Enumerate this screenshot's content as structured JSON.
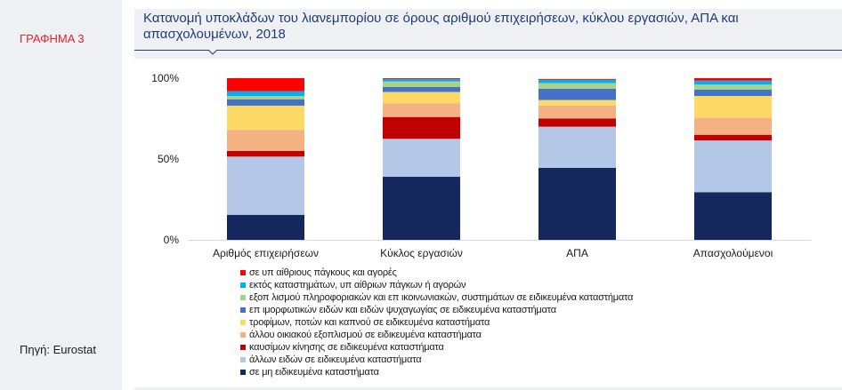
{
  "sidebar": {
    "graph_label": "ΓΡΑΦΗΜΑ 3",
    "source": "Πηγή: Eurostat"
  },
  "chart_data": {
    "type": "bar",
    "stacked": true,
    "normalized": true,
    "title": "Κατανομή υποκλάδων του λιανεμπορίου σε όρους αριθμού επιχειρήσεων, κύκλου εργασιών, ΑΠΑ και απασχολουμένων, 2018",
    "categories": [
      "Αριθμός επιχειρήσεων",
      "Κύκλος εργασιών",
      "ΑΠΑ",
      "Απασχολούμενοι"
    ],
    "y_ticks": [
      "0%",
      "50%",
      "100%"
    ],
    "ylim": [
      0,
      100
    ],
    "legend_position": "bottom",
    "series": [
      {
        "name": "σε μη ειδικευμένα καταστήματα",
        "color": "#14285e",
        "values": [
          15.5,
          39,
          44.5,
          29.5
        ]
      },
      {
        "name": "άλλων ειδών σε ειδικευμένα καταστήματα",
        "color": "#b4c7e7",
        "values": [
          36,
          23.5,
          25.5,
          32
        ]
      },
      {
        "name": "καυσίμων κίνησης σε ειδικευμένα καταστήματα",
        "color": "#c00000",
        "values": [
          3.5,
          13.5,
          5,
          3.5
        ]
      },
      {
        "name": "άλλου οικιακού εξοπλισμού σε ειδικευμένα καταστήματα",
        "color": "#f4b183",
        "values": [
          13,
          8.5,
          8,
          10.5
        ]
      },
      {
        "name": "τροφίμων, ποτών και καπνού σε ειδικευμένα καταστήματα",
        "color": "#ffd966",
        "values": [
          15,
          7,
          3.5,
          13.5
        ]
      },
      {
        "name": "ειδών ψυχαγωγίας σε ειδικευμένα καταστήματα",
        "color": "#4472c4",
        "values": [
          4,
          3,
          7,
          4
        ]
      },
      {
        "name": "εξοπλισμού πληροφοριακών και επικοινωνιακών συστημάτων σε ειδικευμένα καταστήματα",
        "color": "#a9d18e",
        "values": [
          2,
          3.5,
          3.5,
          3
        ]
      },
      {
        "name": "εκτός καταστημάτων, υπαίθριων πάγκων ή αγορών",
        "color": "#00b0f0",
        "values": [
          3,
          1.5,
          2,
          2.5
        ]
      },
      {
        "name": "σε υπαίθριους πάγκους και αγορές",
        "color": "#ff0000",
        "values": [
          8,
          0.5,
          0.5,
          1.5
        ]
      }
    ]
  },
  "legend": [
    {
      "label": "σε υπ αίθριους πάγκους και αγορές",
      "color": "#ff0000"
    },
    {
      "label": "εκτός καταστημάτων, υπ αίθριων πάγκων ή αγορών",
      "color": "#00b0f0"
    },
    {
      "label": "εξοπ λισμού πληροφοριακών και επ ικοινωνιακών, συστημάτων σε ειδικευμένα καταστήματα",
      "color": "#a9d18e"
    },
    {
      "label": " επ ιμορφωτικών ειδών και ειδών ψυχαγωγίας σε ειδικευμένα καταστήματα",
      "color": "#4472c4"
    },
    {
      "label": "τροφίμων, ποτών και καπνού σε ειδικευμένα καταστήματα",
      "color": "#ffd966"
    },
    {
      "label": "άλλου οικιακού εξοπλισμού σε ειδικευμένα καταστήματα",
      "color": "#f4b183"
    },
    {
      "label": "καυσίμων κίνησης σε ειδικευμένα καταστήματα",
      "color": "#c00000"
    },
    {
      "label": "άλλων ειδών σε ειδικευμένα καταστήματα",
      "color": "#b4c7e7"
    },
    {
      "label": "σε μη ειδικευμένα καταστήματα",
      "color": "#14285e"
    }
  ]
}
